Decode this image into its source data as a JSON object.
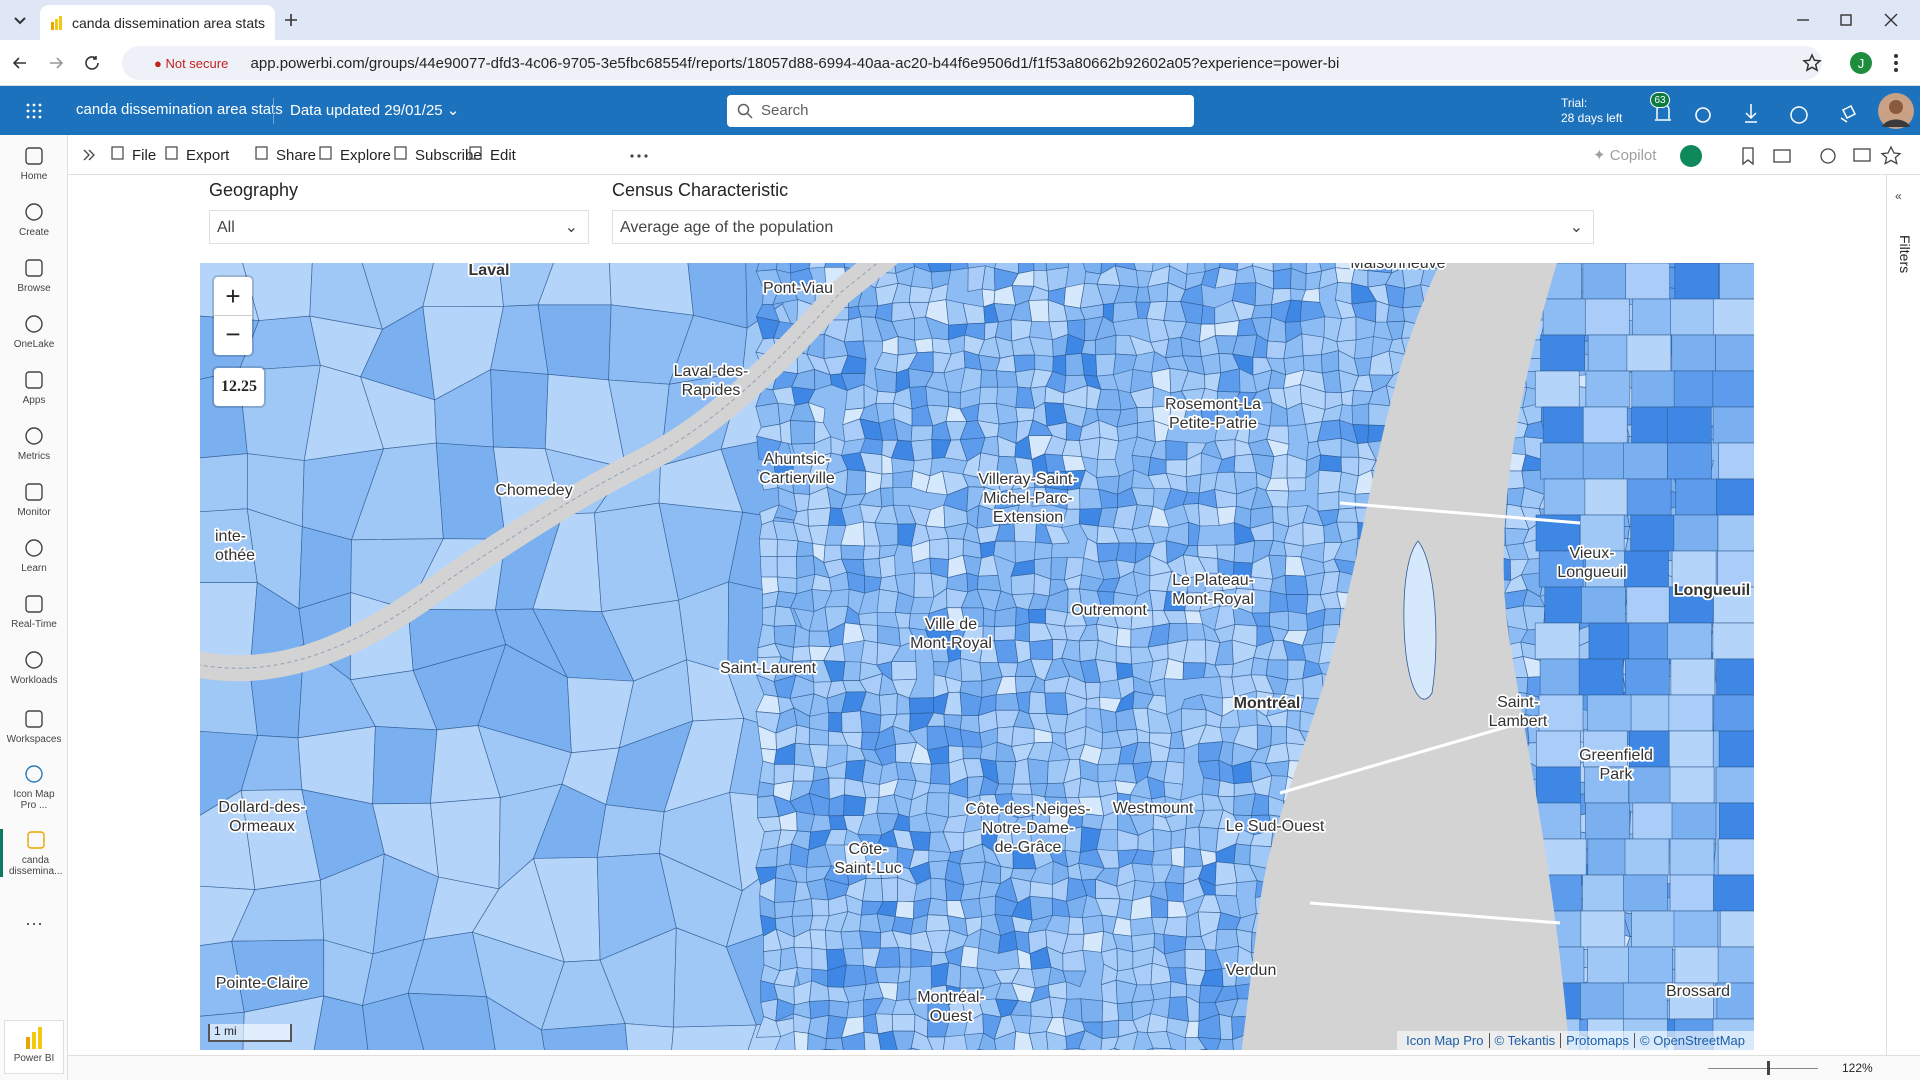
{
  "browser": {
    "tab_title": "canda dissemination area stats",
    "not_secure": "Not secure",
    "url": "app.powerbi.com/groups/44e90077-dfd3-4c06-9705-3e5fbc68554f/reports/18057d88-6994-40aa-ac20-b44f6e9506d1/f1f53a80662b92602a05?experience=power-bi",
    "profile_initial": "J"
  },
  "header": {
    "app_title": "canda dissemination area stats",
    "data_updated": "Data updated 29/01/25",
    "search_placeholder": "Search",
    "trial": "Trial:",
    "trial_days": "28 days left",
    "notifications": "63"
  },
  "toolbar": {
    "items": [
      "File",
      "Export",
      "Share",
      "Explore",
      "Subscribe",
      "Edit"
    ],
    "copilot": "Copilot"
  },
  "nav": {
    "items": [
      "Home",
      "Create",
      "Browse",
      "OneLake",
      "Apps",
      "Metrics",
      "Monitor",
      "Learn",
      "Real-Time",
      "Workloads",
      "Workspaces",
      "Icon Map Pro ...",
      "canda dissemina..."
    ],
    "footer": "Power BI"
  },
  "filters_pane": {
    "label": "Filters"
  },
  "slicers": [
    {
      "label": "Geography",
      "value": "All"
    },
    {
      "label": "Census Characteristic",
      "value": "Average age of the population"
    }
  ],
  "map": {
    "zoom_in": "+",
    "zoom_out": "−",
    "zoom_level": "12.25",
    "scale": "1 mi",
    "attribution": [
      "Icon Map Pro",
      "© Tekantis",
      "Protomaps",
      "© OpenStreetMap"
    ],
    "labels": [
      {
        "lines": [
          "Laval"
        ]
      },
      {
        "lines": [
          "Pont-Viau"
        ]
      },
      {
        "lines": [
          "Maisonneuve"
        ]
      },
      {
        "lines": [
          "Laval-des-",
          "Rapides"
        ]
      },
      {
        "lines": [
          "Rosemont-La",
          "Petite-Patrie"
        ]
      },
      {
        "lines": [
          "Chomedey"
        ]
      },
      {
        "lines": [
          "Ahuntsic-",
          "Cartierville"
        ]
      },
      {
        "lines": [
          "Villeray-Saint-",
          "Michel-Parc-",
          "Extension"
        ]
      },
      {
        "lines": [
          "inte-",
          "othée"
        ]
      },
      {
        "lines": [
          "Le Plateau-",
          "Mont-Royal"
        ]
      },
      {
        "lines": [
          "Vieux-",
          "Longueuil"
        ]
      },
      {
        "lines": [
          "Longueuil"
        ]
      },
      {
        "lines": [
          "Outremont"
        ]
      },
      {
        "lines": [
          "Ville de",
          "Mont-Royal"
        ]
      },
      {
        "lines": [
          "Saint-Laurent"
        ]
      },
      {
        "lines": [
          "Montréal"
        ]
      },
      {
        "lines": [
          "Saint-",
          "Lambert"
        ]
      },
      {
        "lines": [
          "Greenfield",
          "Park"
        ]
      },
      {
        "lines": [
          "Dollard-des-",
          "Ormeaux"
        ]
      },
      {
        "lines": [
          "Côte-des-Neiges-",
          "Notre-Dame-",
          "de-Grâce"
        ]
      },
      {
        "lines": [
          "Westmount"
        ]
      },
      {
        "lines": [
          "Le Sud-Ouest"
        ]
      },
      {
        "lines": [
          "Côte-",
          "Saint-Luc"
        ]
      },
      {
        "lines": [
          "Pointe-Claire"
        ]
      },
      {
        "lines": [
          "Verdun"
        ]
      },
      {
        "lines": [
          "Brossard"
        ]
      },
      {
        "lines": [
          "Montréal-",
          "Ouest"
        ]
      }
    ]
  },
  "status": {
    "zoom": "122%"
  }
}
